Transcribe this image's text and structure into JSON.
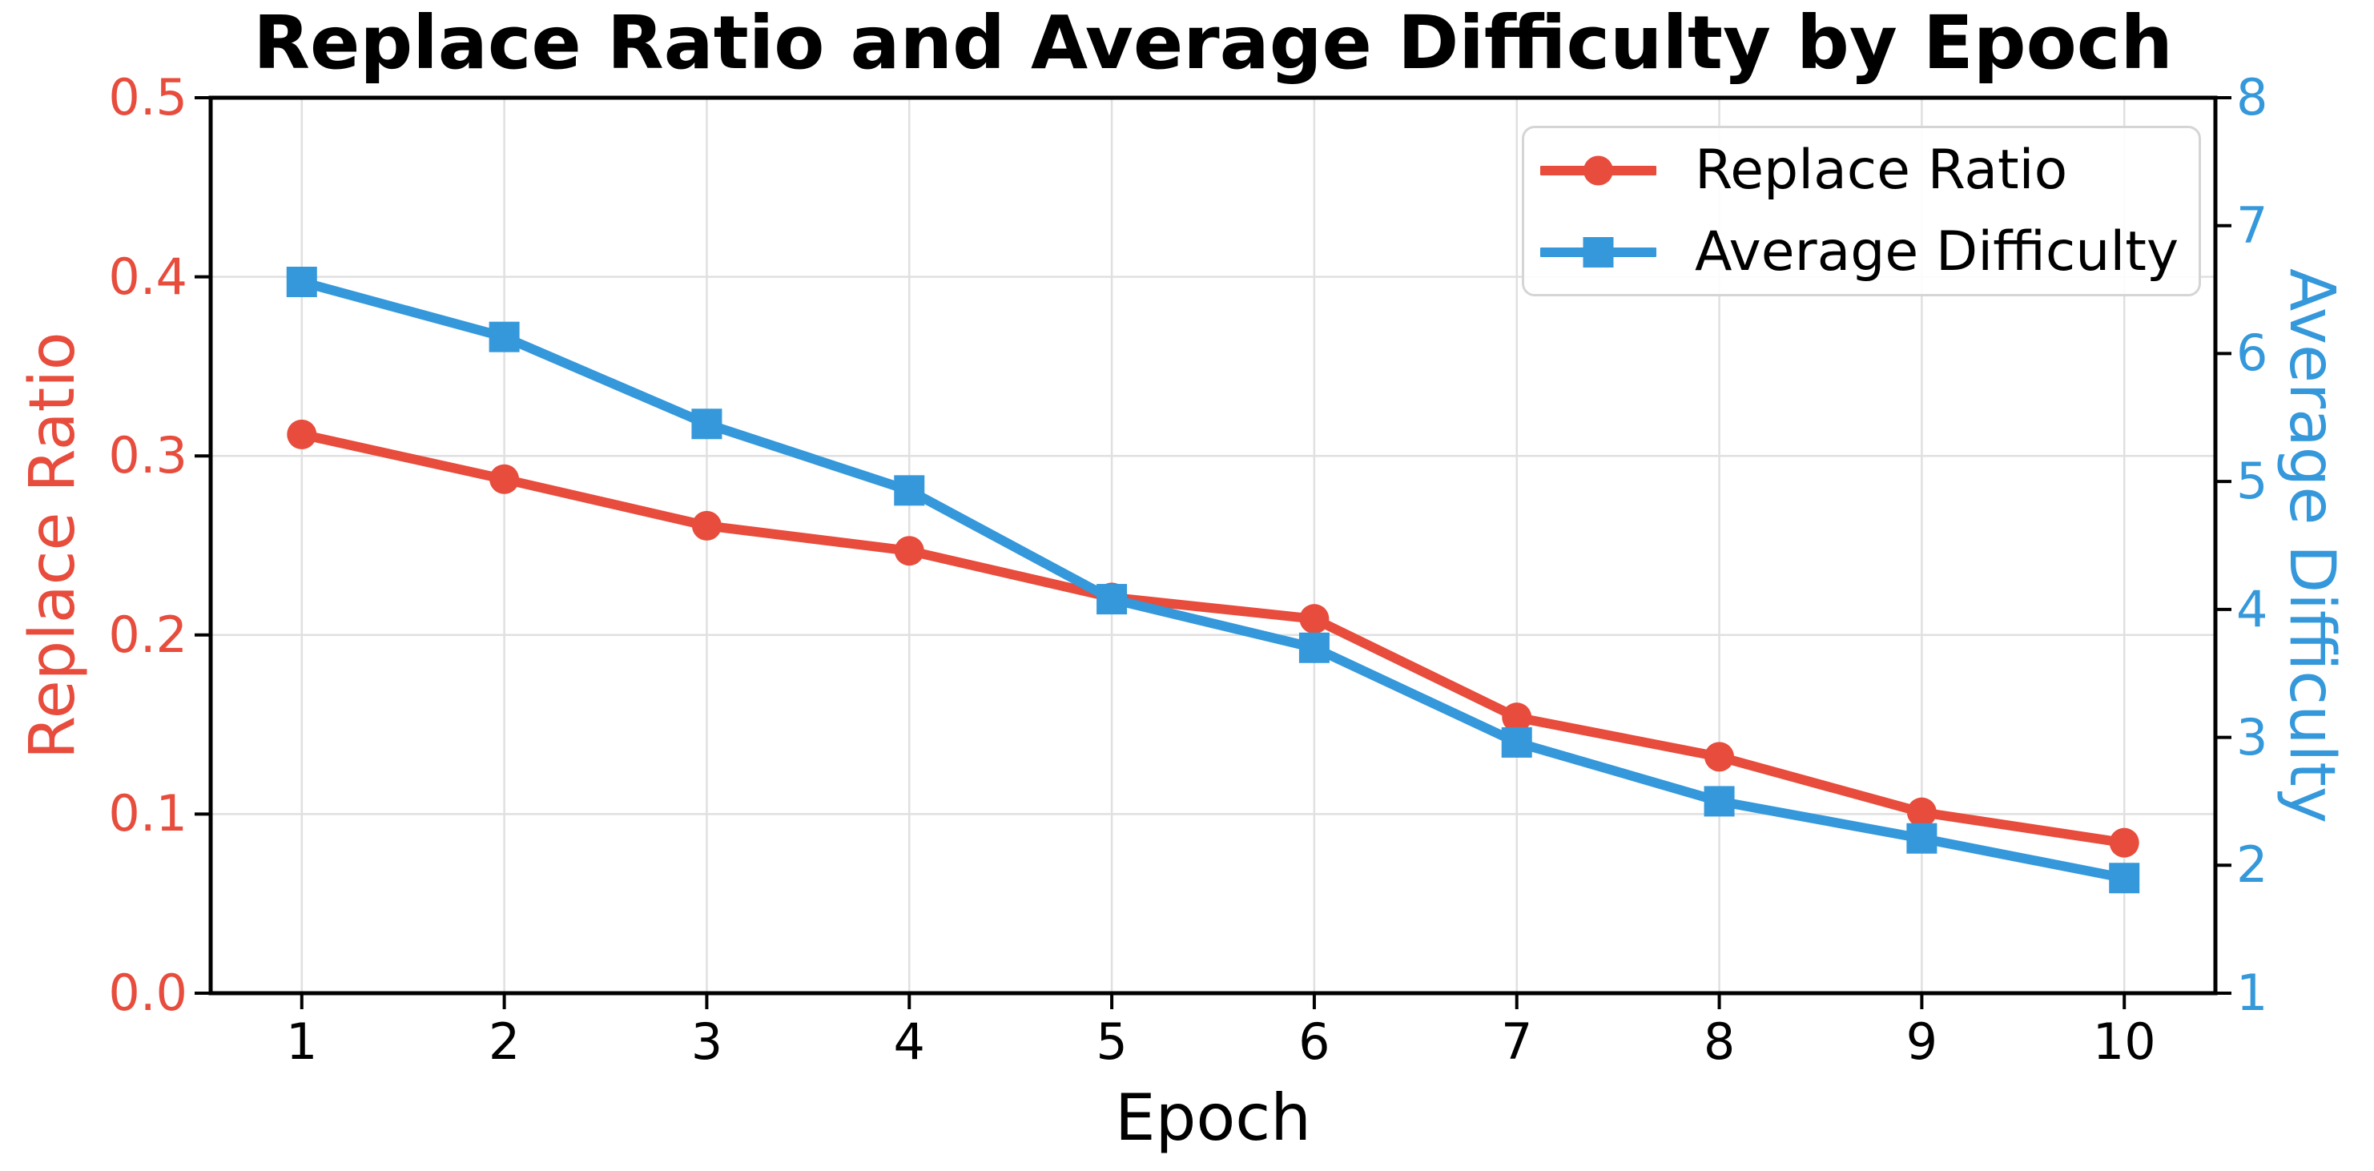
{
  "chart_data": {
    "type": "line",
    "title": "Replace Ratio and Average Difficulty by Epoch",
    "xlabel": "Epoch",
    "grid": true,
    "legend_position": "upper right",
    "x": [
      1,
      2,
      3,
      4,
      5,
      6,
      7,
      8,
      9,
      10
    ],
    "xlim": [
      0.55,
      10.45
    ],
    "x_tick_labels": [
      "1",
      "2",
      "3",
      "4",
      "5",
      "6",
      "7",
      "8",
      "9",
      "10"
    ],
    "left_axis": {
      "label": "Replace Ratio",
      "color": "#e74c3c",
      "lim": [
        0.0,
        0.5
      ],
      "tick_labels": [
        "0.0",
        "0.1",
        "0.2",
        "0.3",
        "0.4",
        "0.5"
      ]
    },
    "right_axis": {
      "label": "Average Difficulty",
      "color": "#3498db",
      "lim": [
        1,
        8
      ],
      "tick_labels": [
        "1",
        "2",
        "3",
        "4",
        "5",
        "6",
        "7",
        "8"
      ]
    },
    "series": [
      {
        "name": "Replace Ratio",
        "axis": "left",
        "color": "#e74c3c",
        "marker": "circle",
        "values": [
          0.312,
          0.287,
          0.261,
          0.247,
          0.221,
          0.209,
          0.154,
          0.132,
          0.101,
          0.084
        ]
      },
      {
        "name": "Average Difficulty",
        "axis": "right",
        "color": "#3498db",
        "marker": "square",
        "values": [
          6.56,
          6.13,
          5.45,
          4.93,
          4.08,
          3.7,
          2.96,
          2.5,
          2.21,
          1.9
        ]
      }
    ],
    "style": {
      "grid_color": "#e0e0e0",
      "spine_color": "#000000",
      "tick_color": "#000000",
      "title_color": "#000000",
      "background": "#ffffff"
    }
  }
}
